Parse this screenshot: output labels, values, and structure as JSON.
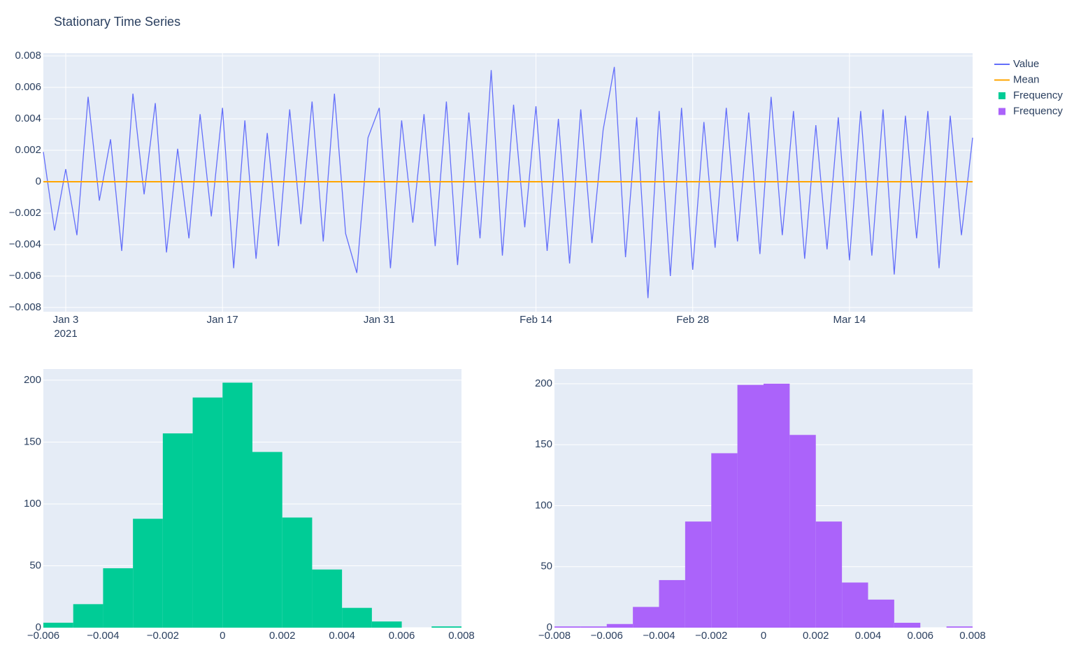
{
  "chart_data": [
    {
      "type": "line",
      "title": "Stationary Time Series",
      "legend": "right",
      "grid": true,
      "x": [
        "2021-01-01",
        "2021-01-02",
        "2021-01-03",
        "2021-01-04",
        "2021-01-05",
        "2021-01-06",
        "2021-01-07",
        "2021-01-08",
        "2021-01-09",
        "2021-01-10",
        "2021-01-11",
        "2021-01-12",
        "2021-01-13",
        "2021-01-14",
        "2021-01-15",
        "2021-01-16",
        "2021-01-17",
        "2021-01-18",
        "2021-01-19",
        "2021-01-20",
        "2021-01-21",
        "2021-01-22",
        "2021-01-23",
        "2021-01-24",
        "2021-01-25",
        "2021-01-26",
        "2021-01-27",
        "2021-01-28",
        "2021-01-29",
        "2021-01-30",
        "2021-01-31",
        "2021-02-01",
        "2021-02-02",
        "2021-02-03",
        "2021-02-04",
        "2021-02-05",
        "2021-02-06",
        "2021-02-07",
        "2021-02-08",
        "2021-02-09",
        "2021-02-10",
        "2021-02-11",
        "2021-02-12",
        "2021-02-13",
        "2021-02-14",
        "2021-02-15",
        "2021-02-16",
        "2021-02-17",
        "2021-02-18",
        "2021-02-19",
        "2021-02-20",
        "2021-02-21",
        "2021-02-22",
        "2021-02-23",
        "2021-02-24",
        "2021-02-25",
        "2021-02-26",
        "2021-02-27",
        "2021-02-28",
        "2021-03-01",
        "2021-03-02",
        "2021-03-03",
        "2021-03-04",
        "2021-03-05",
        "2021-03-06",
        "2021-03-07",
        "2021-03-08",
        "2021-03-09",
        "2021-03-10",
        "2021-03-11",
        "2021-03-12",
        "2021-03-13",
        "2021-03-14",
        "2021-03-15",
        "2021-03-16",
        "2021-03-17",
        "2021-03-18",
        "2021-03-19",
        "2021-03-20",
        "2021-03-21",
        "2021-03-22",
        "2021-03-23",
        "2021-03-24",
        "2021-03-25"
      ],
      "series": [
        {
          "name": "Value",
          "color": "#636efa",
          "values": [
            0.0019,
            -0.0031,
            0.0008,
            -0.0034,
            0.0054,
            -0.0012,
            0.0027,
            -0.0044,
            0.0056,
            -0.0008,
            0.005,
            -0.0045,
            0.0021,
            -0.0036,
            0.0043,
            -0.0022,
            0.0047,
            -0.0055,
            0.0039,
            -0.0049,
            0.0031,
            -0.0041,
            0.0046,
            -0.0027,
            0.0051,
            -0.0038,
            0.0056,
            -0.0033,
            -0.0058,
            0.0028,
            0.0047,
            -0.0055,
            0.0039,
            -0.0026,
            0.0043,
            -0.0041,
            0.0051,
            -0.0053,
            0.0044,
            -0.0036,
            0.0071,
            -0.0047,
            0.0049,
            -0.0029,
            0.0048,
            -0.0044,
            0.004,
            -0.0052,
            0.0046,
            -0.0039,
            0.0033,
            0.0073,
            -0.0048,
            0.0041,
            -0.0074,
            0.0045,
            -0.006,
            0.0047,
            -0.0056,
            0.0038,
            -0.0042,
            0.0047,
            -0.0038,
            0.0044,
            -0.0046,
            0.0054,
            -0.0034,
            0.0045,
            -0.0049,
            0.0036,
            -0.0043,
            0.0041,
            -0.005,
            0.0045,
            -0.0047,
            0.0046,
            -0.0059,
            0.0042,
            -0.0036,
            0.0045,
            -0.0055,
            0.0042,
            -0.0034,
            0.0028
          ]
        },
        {
          "name": "Mean",
          "color": "#ffa500",
          "values": [
            0,
            0,
            0,
            0,
            0,
            0,
            0,
            0,
            0,
            0,
            0,
            0,
            0,
            0,
            0,
            0,
            0,
            0,
            0,
            0,
            0,
            0,
            0,
            0,
            0,
            0,
            0,
            0,
            0,
            0,
            0,
            0,
            0,
            0,
            0,
            0,
            0,
            0,
            0,
            0,
            0,
            0,
            0,
            0,
            0,
            0,
            0,
            0,
            0,
            0,
            0,
            0,
            0,
            0,
            0,
            0,
            0,
            0,
            0,
            0,
            0,
            0,
            0,
            0,
            0,
            0,
            0,
            0,
            0,
            0,
            0,
            0,
            0,
            0,
            0,
            0,
            0,
            0,
            0,
            0,
            0,
            0,
            0,
            0
          ]
        }
      ],
      "xlim": [
        "2021-01-01",
        "2021-03-25"
      ],
      "xticks": [
        {
          "value": "2021-01-03",
          "label": "Jan 3"
        },
        {
          "value": "2021-01-17",
          "label": "Jan 17"
        },
        {
          "value": "2021-01-31",
          "label": "Jan 31"
        },
        {
          "value": "2021-02-14",
          "label": "Feb 14"
        },
        {
          "value": "2021-02-28",
          "label": "Feb 28"
        },
        {
          "value": "2021-03-14",
          "label": "Mar 14"
        }
      ],
      "x_year": "2021",
      "ylim": [
        -0.00827,
        0.00818
      ],
      "yticks": [
        {
          "value": -0.008,
          "label": "−0.008"
        },
        {
          "value": -0.006,
          "label": "−0.006"
        },
        {
          "value": -0.004,
          "label": "−0.004"
        },
        {
          "value": -0.002,
          "label": "−0.002"
        },
        0,
        0.002,
        0.004,
        0.006,
        0.008
      ]
    },
    {
      "type": "histogram",
      "grid": true,
      "bins": [
        -0.006,
        -0.005,
        -0.004,
        -0.003,
        -0.002,
        -0.001,
        0,
        0.001,
        0.002,
        0.003,
        0.004,
        0.005,
        0.006,
        0.007,
        0.008
      ],
      "series": [
        {
          "name": "Frequency",
          "color": "#00cc96",
          "values": [
            4,
            19,
            48,
            88,
            157,
            186,
            198,
            142,
            89,
            47,
            16,
            5,
            0,
            1
          ]
        }
      ],
      "xlim": [
        -0.006,
        0.008
      ],
      "xticks": [
        {
          "value": -0.006,
          "label": "−0.006"
        },
        {
          "value": -0.004,
          "label": "−0.004"
        },
        {
          "value": -0.002,
          "label": "−0.002"
        },
        0,
        0.002,
        0.004,
        0.006,
        0.008
      ],
      "ylim": [
        0,
        209
      ],
      "yticks": [
        0,
        50,
        100,
        150,
        200
      ]
    },
    {
      "type": "histogram",
      "grid": true,
      "bins": [
        -0.008,
        -0.007,
        -0.006,
        -0.005,
        -0.004,
        -0.003,
        -0.002,
        -0.001,
        0,
        0.001,
        0.002,
        0.003,
        0.004,
        0.005,
        0.006,
        0.007,
        0.008
      ],
      "series": [
        {
          "name": "Frequency",
          "color": "#ab63fa",
          "values": [
            1,
            1,
            3,
            17,
            39,
            87,
            143,
            199,
            200,
            158,
            87,
            37,
            23,
            4,
            0,
            1
          ]
        }
      ],
      "xlim": [
        -0.008,
        0.008
      ],
      "xticks": [
        {
          "value": -0.008,
          "label": "−0.008"
        },
        {
          "value": -0.006,
          "label": "−0.006"
        },
        {
          "value": -0.004,
          "label": "−0.004"
        },
        {
          "value": -0.002,
          "label": "−0.002"
        },
        0,
        0.002,
        0.004,
        0.006,
        0.008
      ],
      "ylim": [
        0,
        212
      ],
      "yticks": [
        0,
        50,
        100,
        150,
        200
      ]
    }
  ]
}
